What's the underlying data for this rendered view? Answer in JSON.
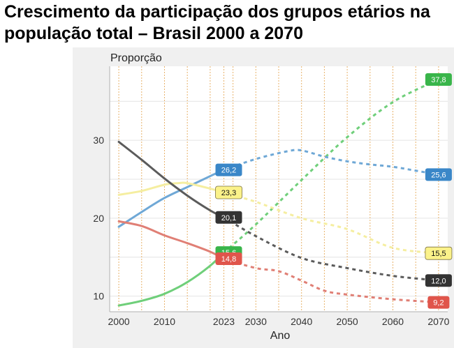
{
  "title": "Crescimento da participação dos grupos etários na população total – Brasil 2000 a 2070",
  "chart_data": {
    "type": "line",
    "ylabel": "Proporção",
    "xlabel": "Ano",
    "xlim": [
      1998,
      2072
    ],
    "ylim": [
      8,
      39.5
    ],
    "x_ticks": [
      2000,
      2010,
      2023,
      2030,
      2040,
      2050,
      2060,
      2070
    ],
    "y_ticks": [
      10,
      20,
      30
    ],
    "x_gridlines": [
      2000,
      2005,
      2010,
      2015,
      2020,
      2023,
      2025,
      2030,
      2035,
      2040,
      2045,
      2050,
      2055,
      2060,
      2065,
      2070
    ],
    "grid": true,
    "observed_until": 2023,
    "series": [
      {
        "color": "#6fcf7a",
        "points": [
          [
            2000,
            8.8
          ],
          [
            2005,
            9.4
          ],
          [
            2010,
            10.3
          ],
          [
            2015,
            11.8
          ],
          [
            2020,
            13.9
          ],
          [
            2023,
            15.6
          ],
          [
            2030,
            19.2
          ],
          [
            2040,
            24.9
          ],
          [
            2050,
            30.4
          ],
          [
            2060,
            34.9
          ],
          [
            2070,
            37.8
          ]
        ],
        "label_value": "15,6",
        "end_label_value": "37,8"
      },
      {
        "color": "#6fa8d6",
        "points": [
          [
            2000,
            18.9
          ],
          [
            2005,
            20.8
          ],
          [
            2010,
            22.6
          ],
          [
            2015,
            24.0
          ],
          [
            2020,
            25.4
          ],
          [
            2023,
            26.2
          ],
          [
            2030,
            27.6
          ],
          [
            2037,
            28.6
          ],
          [
            2040,
            28.7
          ],
          [
            2045,
            27.9
          ],
          [
            2050,
            27.3
          ],
          [
            2055,
            26.9
          ],
          [
            2060,
            26.6
          ],
          [
            2065,
            26.1
          ],
          [
            2070,
            25.6
          ]
        ],
        "label_value": "26,2",
        "end_label_value": "25,6"
      },
      {
        "color": "#f5eea0",
        "points": [
          [
            2000,
            23.0
          ],
          [
            2005,
            23.5
          ],
          [
            2010,
            24.3
          ],
          [
            2013,
            24.5
          ],
          [
            2015,
            24.5
          ],
          [
            2020,
            23.8
          ],
          [
            2023,
            23.3
          ],
          [
            2030,
            22.1
          ],
          [
            2040,
            20.0
          ],
          [
            2050,
            18.6
          ],
          [
            2060,
            16.2
          ],
          [
            2070,
            15.5
          ]
        ],
        "label_value": "23,3",
        "end_label_value": "15,5"
      },
      {
        "color": "#5b5b5b",
        "points": [
          [
            2000,
            29.8
          ],
          [
            2005,
            27.5
          ],
          [
            2010,
            25.1
          ],
          [
            2015,
            22.9
          ],
          [
            2020,
            21.0
          ],
          [
            2023,
            20.1
          ],
          [
            2030,
            17.7
          ],
          [
            2040,
            14.9
          ],
          [
            2050,
            13.6
          ],
          [
            2060,
            12.6
          ],
          [
            2070,
            12.0
          ]
        ],
        "label_value": "20,1",
        "end_label_value": "12,0"
      },
      {
        "color": "#e07f75",
        "points": [
          [
            2000,
            19.6
          ],
          [
            2005,
            19.0
          ],
          [
            2010,
            17.8
          ],
          [
            2015,
            16.8
          ],
          [
            2020,
            15.7
          ],
          [
            2023,
            14.8
          ],
          [
            2030,
            13.6
          ],
          [
            2035,
            13.2
          ],
          [
            2040,
            12.0
          ],
          [
            2045,
            10.7
          ],
          [
            2050,
            10.2
          ],
          [
            2060,
            9.6
          ],
          [
            2070,
            9.2
          ]
        ],
        "label_value": "14,8",
        "end_label_value": "9,2"
      }
    ]
  }
}
